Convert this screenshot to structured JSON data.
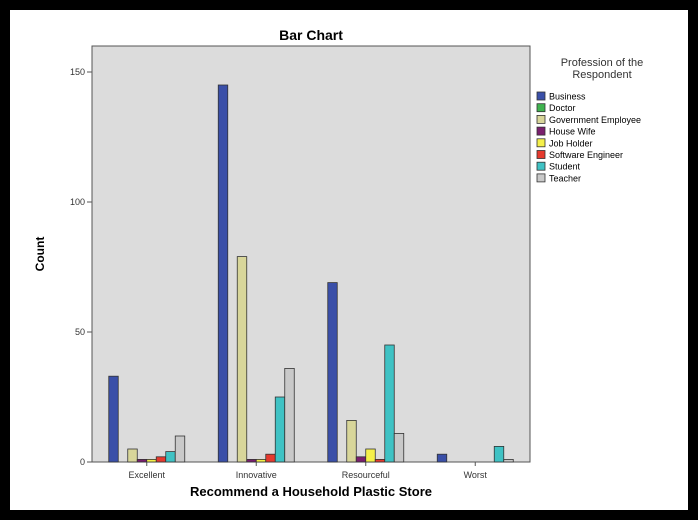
{
  "chart_data": {
    "type": "bar",
    "title": "Bar Chart",
    "xlabel": "Recommend a Household Plastic Store",
    "ylabel": "Count",
    "ylim": [
      0,
      160
    ],
    "yticks": [
      0,
      50,
      100,
      150
    ],
    "grid": false,
    "legend_title": "Profession of the Respondent",
    "legend_placement": "right",
    "categories": [
      "Excellent",
      "Innovative",
      "Resourceful",
      "Worst"
    ],
    "series": [
      {
        "name": "Business",
        "color": "#3a4fa8",
        "values": [
          33,
          145,
          69,
          3
        ]
      },
      {
        "name": "Doctor",
        "color": "#3fb34f",
        "values": [
          0,
          0,
          0,
          0
        ]
      },
      {
        "name": "Government Employee",
        "color": "#d8d69a",
        "values": [
          5,
          79,
          16,
          0
        ]
      },
      {
        "name": "House Wife",
        "color": "#7a1f6e",
        "values": [
          1,
          1,
          2,
          0
        ]
      },
      {
        "name": "Job Holder",
        "color": "#f5f04a",
        "values": [
          1,
          1,
          5,
          0
        ]
      },
      {
        "name": "Software Engineer",
        "color": "#e53a2e",
        "values": [
          2,
          3,
          1,
          0
        ]
      },
      {
        "name": "Student",
        "color": "#3fc2c4",
        "values": [
          4,
          25,
          45,
          6
        ]
      },
      {
        "name": "Teacher",
        "color": "#c9c9c9",
        "values": [
          10,
          36,
          11,
          1
        ]
      }
    ]
  }
}
